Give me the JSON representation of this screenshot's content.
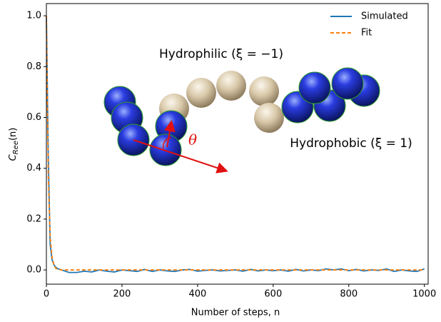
{
  "chart_data": {
    "type": "line",
    "xlabel": "Number of steps, n",
    "ylabel": {
      "base": "C",
      "sub": "Ree",
      "tail": "(n)"
    },
    "annotations": {
      "hydrophilic": "Hydrophilic (ξ = −1)",
      "hydrophobic": "Hydrophobic (ξ = 1)",
      "angle": "θ"
    },
    "x": [
      0,
      5,
      10,
      15,
      20,
      25,
      30,
      40,
      60,
      80,
      100,
      120,
      140,
      160,
      180,
      200,
      220,
      240,
      260,
      280,
      300,
      320,
      340,
      360,
      380,
      400,
      420,
      440,
      460,
      480,
      500,
      520,
      540,
      560,
      580,
      600,
      620,
      640,
      660,
      680,
      700,
      720,
      740,
      760,
      780,
      800,
      820,
      840,
      860,
      880,
      900,
      920,
      940,
      960,
      980,
      1000
    ],
    "series": [
      {
        "name": "Simulated",
        "color": "#1f77b4",
        "style": "solid",
        "values": [
          1.0,
          0.45,
          0.1,
          0.04,
          0.02,
          0.01,
          0.005,
          0.0,
          -0.01,
          -0.01,
          -0.005,
          -0.008,
          0.0,
          -0.005,
          -0.008,
          0.0,
          -0.003,
          -0.006,
          0.002,
          -0.006,
          0.0,
          -0.004,
          -0.006,
          0.0,
          0.002,
          -0.005,
          -0.002,
          0.0,
          -0.004,
          -0.002,
          0.0,
          -0.005,
          0.002,
          -0.004,
          0.0,
          -0.003,
          0.0,
          -0.005,
          0.002,
          -0.004,
          0.0,
          -0.003,
          0.004,
          0.0,
          0.004,
          -0.003,
          0.002,
          -0.004,
          0.0,
          -0.002,
          0.004,
          -0.006,
          0.0,
          -0.004,
          -0.006,
          0.004
        ]
      },
      {
        "name": "Fit",
        "color": "#ff7f0e",
        "style": "dashed",
        "values": [
          1.0,
          0.37,
          0.13,
          0.05,
          0.02,
          0.006,
          0.002,
          0.0,
          0.0,
          0.0,
          0.0,
          0.0,
          0.0,
          0.0,
          0.0,
          0.0,
          0.0,
          0.0,
          0.0,
          0.0,
          0.0,
          0.0,
          0.0,
          0.0,
          0.0,
          0.0,
          0.0,
          0.0,
          0.0,
          0.0,
          0.0,
          0.0,
          0.0,
          0.0,
          0.0,
          0.0,
          0.0,
          0.0,
          0.0,
          0.0,
          0.0,
          0.0,
          0.0,
          0.0,
          0.0,
          0.0,
          0.0,
          0.0,
          0.0,
          0.0,
          0.0,
          0.0,
          0.0,
          0.0,
          0.0,
          0.0
        ]
      }
    ],
    "xlim": [
      0,
      1010
    ],
    "xticks": [
      0,
      200,
      400,
      600,
      800,
      1000
    ],
    "ylim": [
      -0.056,
      1.048
    ],
    "yticks": [
      {
        "value": 0,
        "label": "0.0"
      },
      {
        "value": 0.2,
        "label": "0.2"
      },
      {
        "value": 0.4,
        "label": "0.4"
      },
      {
        "value": 0.6,
        "label": "0.6"
      },
      {
        "value": 0.8,
        "label": "0.8"
      },
      {
        "value": 1,
        "label": "1.0"
      }
    ],
    "legend": "upper right",
    "grid": false
  }
}
